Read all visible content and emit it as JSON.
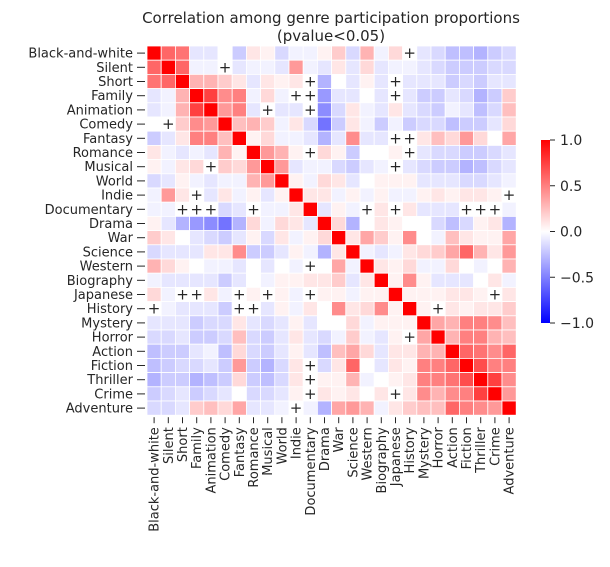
{
  "chart_data": {
    "type": "heatmap",
    "title": "Correlation among genre participation proportions",
    "subtitle": "(pvalue<0.05)",
    "labels": [
      "Black-and-white",
      "Silent",
      "Short",
      "Family",
      "Animation",
      "Comedy",
      "Fantasy",
      "Romance",
      "Musical",
      "World",
      "Indie",
      "Documentary",
      "Drama",
      "War",
      "Science",
      "Western",
      "Biography",
      "Japanese",
      "History",
      "Mystery",
      "Horror",
      "Action",
      "Fiction",
      "Thriller",
      "Crime",
      "Adventure"
    ],
    "matrix": [
      [
        1.0,
        0.6,
        0.55,
        -0.1,
        -0.1,
        0.0,
        -0.2,
        0.1,
        0.05,
        -0.15,
        -0.05,
        -0.05,
        0.05,
        0.2,
        -0.15,
        0.3,
        -0.05,
        0.15,
        null,
        -0.1,
        -0.15,
        -0.25,
        -0.25,
        -0.3,
        -0.2,
        -0.15
      ],
      [
        0.6,
        1.0,
        0.6,
        -0.05,
        -0.05,
        null,
        -0.1,
        -0.05,
        -0.05,
        -0.1,
        0.4,
        -0.05,
        -0.1,
        0.1,
        -0.1,
        0.15,
        -0.1,
        -0.05,
        -0.05,
        -0.1,
        -0.15,
        -0.2,
        -0.2,
        -0.2,
        -0.15,
        -0.15
      ],
      [
        0.55,
        0.6,
        1.0,
        0.3,
        0.3,
        0.2,
        0.1,
        -0.1,
        0.1,
        0.05,
        0.1,
        null,
        -0.3,
        0.0,
        -0.1,
        0.05,
        -0.1,
        null,
        -0.1,
        -0.1,
        -0.1,
        -0.2,
        -0.15,
        -0.2,
        -0.1,
        -0.1
      ],
      [
        -0.1,
        -0.05,
        0.3,
        1.0,
        0.75,
        0.45,
        0.5,
        -0.05,
        0.15,
        -0.05,
        null,
        null,
        -0.4,
        -0.1,
        -0.1,
        0.0,
        -0.1,
        null,
        -0.1,
        -0.2,
        -0.2,
        -0.1,
        -0.15,
        -0.3,
        -0.2,
        0.2
      ],
      [
        -0.1,
        -0.05,
        0.3,
        0.75,
        1.0,
        0.4,
        0.5,
        -0.1,
        null,
        -0.1,
        -0.1,
        null,
        -0.45,
        -0.15,
        0.1,
        -0.05,
        -0.1,
        0.1,
        -0.1,
        -0.15,
        -0.2,
        -0.05,
        -0.1,
        -0.25,
        -0.15,
        0.25
      ],
      [
        0.0,
        null,
        0.2,
        0.45,
        0.4,
        1.0,
        0.25,
        0.3,
        0.2,
        -0.05,
        0.1,
        -0.15,
        -0.55,
        -0.2,
        0.1,
        -0.05,
        -0.2,
        -0.05,
        -0.2,
        -0.15,
        -0.15,
        -0.25,
        -0.2,
        -0.2,
        -0.1,
        0.15
      ],
      [
        -0.2,
        -0.1,
        0.1,
        0.5,
        0.5,
        0.25,
        1.0,
        0.05,
        0.15,
        -0.05,
        -0.05,
        -0.1,
        -0.3,
        -0.1,
        0.45,
        -0.1,
        -0.1,
        null,
        null,
        0.1,
        0.25,
        0.15,
        0.4,
        0.15,
        0.0,
        0.35
      ],
      [
        0.1,
        -0.05,
        -0.1,
        -0.05,
        -0.1,
        0.3,
        0.05,
        1.0,
        0.4,
        0.3,
        0.05,
        null,
        0.15,
        0.05,
        -0.2,
        0.0,
        0.0,
        0.05,
        null,
        -0.1,
        -0.15,
        -0.15,
        -0.2,
        -0.2,
        -0.15,
        -0.1
      ],
      [
        0.05,
        -0.05,
        0.1,
        0.15,
        null,
        0.2,
        0.15,
        0.4,
        1.0,
        0.4,
        -0.1,
        -0.05,
        -0.05,
        -0.15,
        -0.2,
        -0.1,
        -0.05,
        null,
        -0.1,
        -0.15,
        -0.2,
        -0.2,
        -0.3,
        -0.25,
        -0.15,
        -0.1
      ],
      [
        -0.15,
        -0.1,
        0.05,
        -0.05,
        -0.1,
        -0.05,
        -0.05,
        0.3,
        0.4,
        1.0,
        0.05,
        -0.05,
        0.15,
        0.1,
        -0.1,
        0.0,
        0.05,
        0.05,
        0.05,
        -0.1,
        -0.1,
        -0.1,
        -0.15,
        -0.15,
        -0.1,
        -0.05
      ],
      [
        -0.05,
        0.4,
        0.1,
        null,
        -0.1,
        0.1,
        -0.05,
        0.05,
        -0.1,
        0.05,
        1.0,
        0.1,
        0.1,
        -0.05,
        0.05,
        -0.05,
        0.05,
        -0.05,
        -0.05,
        0.05,
        0.1,
        0.05,
        0.1,
        0.1,
        0.05,
        null
      ],
      [
        -0.05,
        -0.05,
        null,
        null,
        null,
        -0.15,
        -0.1,
        null,
        -0.05,
        -0.05,
        0.1,
        1.0,
        -0.1,
        0.05,
        -0.05,
        null,
        0.1,
        null,
        0.1,
        -0.1,
        -0.1,
        -0.1,
        null,
        null,
        null,
        -0.05
      ],
      [
        0.05,
        -0.1,
        -0.3,
        -0.4,
        -0.45,
        -0.55,
        -0.3,
        0.15,
        -0.05,
        0.15,
        0.1,
        -0.1,
        1.0,
        0.15,
        -0.3,
        0.0,
        0.1,
        0.05,
        0.0,
        0.0,
        -0.15,
        -0.25,
        -0.15,
        0.05,
        0.1,
        -0.3
      ],
      [
        0.2,
        0.1,
        0.0,
        -0.1,
        -0.15,
        -0.2,
        -0.1,
        0.05,
        -0.15,
        0.1,
        -0.05,
        0.05,
        0.15,
        1.0,
        0.1,
        0.35,
        0.2,
        0.05,
        0.45,
        0.0,
        -0.05,
        0.25,
        0.1,
        0.05,
        0.05,
        0.35
      ],
      [
        -0.15,
        -0.1,
        -0.1,
        -0.1,
        0.1,
        0.1,
        0.45,
        -0.2,
        -0.2,
        -0.1,
        0.05,
        -0.05,
        -0.3,
        0.1,
        1.0,
        -0.05,
        -0.1,
        -0.05,
        0.1,
        0.15,
        0.2,
        0.35,
        0.6,
        0.3,
        0.1,
        0.4
      ],
      [
        0.3,
        0.15,
        0.05,
        0.0,
        -0.05,
        -0.05,
        -0.1,
        0.0,
        -0.1,
        0.0,
        -0.05,
        null,
        0.0,
        0.35,
        -0.05,
        1.0,
        0.1,
        0.05,
        0.15,
        -0.05,
        -0.05,
        0.15,
        0.0,
        -0.05,
        0.0,
        0.3
      ],
      [
        -0.05,
        -0.1,
        -0.1,
        -0.1,
        -0.1,
        -0.2,
        -0.1,
        0.0,
        -0.05,
        0.05,
        0.05,
        0.1,
        0.1,
        0.2,
        -0.1,
        0.1,
        1.0,
        0.05,
        0.45,
        0.05,
        -0.1,
        -0.1,
        -0.1,
        0.0,
        0.1,
        -0.05
      ],
      [
        0.15,
        -0.05,
        null,
        null,
        0.1,
        -0.05,
        null,
        0.05,
        null,
        0.05,
        -0.05,
        null,
        0.05,
        0.05,
        -0.05,
        0.05,
        0.05,
        1.0,
        0.05,
        0.05,
        0.05,
        0.1,
        0.1,
        0.05,
        null,
        0.1
      ],
      [
        null,
        -0.05,
        -0.1,
        -0.1,
        -0.1,
        -0.2,
        null,
        null,
        -0.1,
        0.05,
        -0.05,
        0.1,
        0.0,
        0.45,
        0.1,
        0.15,
        0.45,
        0.05,
        1.0,
        0.05,
        null,
        0.1,
        0.05,
        0.1,
        0.1,
        0.2
      ],
      [
        -0.1,
        -0.1,
        -0.1,
        -0.2,
        -0.15,
        -0.15,
        0.1,
        -0.1,
        -0.15,
        -0.1,
        0.05,
        -0.1,
        0.0,
        0.0,
        0.15,
        -0.05,
        0.05,
        0.05,
        0.05,
        1.0,
        0.35,
        0.3,
        0.5,
        0.5,
        0.45,
        0.25
      ],
      [
        -0.15,
        -0.15,
        -0.1,
        -0.2,
        -0.2,
        -0.15,
        0.25,
        -0.15,
        -0.2,
        -0.1,
        0.1,
        -0.1,
        -0.15,
        -0.05,
        0.2,
        -0.05,
        -0.1,
        0.05,
        null,
        0.35,
        1.0,
        0.3,
        0.5,
        0.5,
        0.3,
        0.25
      ],
      [
        -0.25,
        -0.2,
        -0.2,
        -0.1,
        -0.05,
        -0.25,
        0.15,
        -0.15,
        -0.2,
        -0.1,
        0.05,
        -0.1,
        -0.25,
        0.25,
        0.35,
        0.15,
        -0.1,
        0.1,
        0.1,
        0.3,
        0.3,
        1.0,
        0.6,
        0.55,
        0.45,
        0.6
      ],
      [
        -0.25,
        -0.2,
        -0.15,
        -0.15,
        -0.1,
        -0.2,
        0.4,
        -0.2,
        -0.3,
        -0.15,
        0.1,
        null,
        -0.15,
        0.1,
        0.6,
        0.0,
        -0.1,
        0.1,
        0.05,
        0.5,
        0.5,
        0.6,
        1.0,
        0.7,
        0.5,
        0.5
      ],
      [
        -0.3,
        -0.2,
        -0.2,
        -0.3,
        -0.25,
        -0.2,
        0.15,
        -0.2,
        -0.25,
        -0.15,
        0.1,
        null,
        0.05,
        0.05,
        0.3,
        -0.05,
        0.0,
        0.05,
        0.1,
        0.5,
        0.5,
        0.55,
        0.7,
        1.0,
        0.75,
        0.45
      ],
      [
        -0.2,
        -0.15,
        -0.1,
        -0.2,
        -0.15,
        -0.1,
        0.0,
        -0.15,
        -0.15,
        -0.1,
        0.05,
        null,
        0.1,
        0.05,
        0.1,
        0.0,
        0.1,
        null,
        0.1,
        0.45,
        0.3,
        0.45,
        0.5,
        0.75,
        1.0,
        0.4
      ],
      [
        -0.15,
        -0.15,
        -0.1,
        0.2,
        0.25,
        0.15,
        0.35,
        -0.1,
        -0.1,
        -0.05,
        null,
        -0.05,
        -0.3,
        0.35,
        0.4,
        0.3,
        -0.05,
        0.1,
        0.2,
        0.25,
        0.25,
        0.6,
        0.5,
        0.45,
        0.4,
        1.0
      ]
    ],
    "colorbar": {
      "min": -1.0,
      "max": 1.0,
      "ticks": [
        "1.0",
        "0.5",
        "0.0",
        "−0.5",
        "−1.0"
      ],
      "colormap": "bwr"
    },
    "non_significant_marker": "+",
    "grid": false
  }
}
